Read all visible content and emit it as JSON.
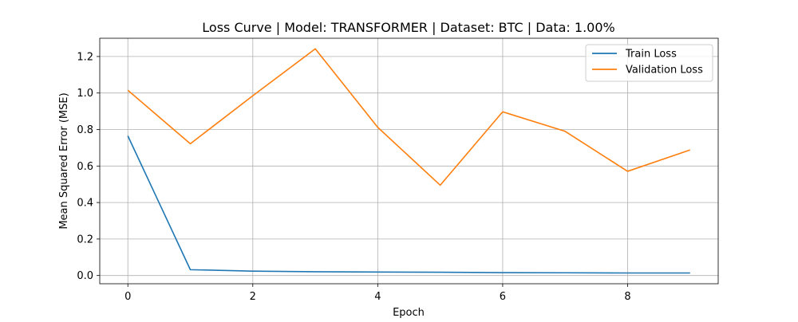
{
  "chart_data": {
    "type": "line",
    "title": "Loss Curve | Model: TRANSFORMER | Dataset: BTC | Data: 1.00%",
    "xlabel": "Epoch",
    "ylabel": "Mean Squared Error (MSE)",
    "x": [
      0,
      1,
      2,
      3,
      4,
      5,
      6,
      7,
      8,
      9
    ],
    "xlim": [
      -0.45,
      9.45
    ],
    "ylim": [
      -0.045,
      1.3
    ],
    "xticks": [
      0,
      2,
      4,
      6,
      8
    ],
    "xtick_labels": [
      "0",
      "2",
      "4",
      "6",
      "8"
    ],
    "yticks": [
      0.0,
      0.2,
      0.4,
      0.6,
      0.8,
      1.0,
      1.2
    ],
    "ytick_labels": [
      "0.0",
      "0.2",
      "0.4",
      "0.6",
      "0.8",
      "1.0",
      "1.2"
    ],
    "grid": true,
    "legend_position": "top-right",
    "series": [
      {
        "name": "Train Loss",
        "color": "#1f77b4",
        "values": [
          0.765,
          0.032,
          0.024,
          0.021,
          0.019,
          0.018,
          0.016,
          0.015,
          0.014,
          0.014
        ]
      },
      {
        "name": "Validation Loss",
        "color": "#ff7f0e",
        "values": [
          1.015,
          0.722,
          0.985,
          1.242,
          0.812,
          0.495,
          0.897,
          0.79,
          0.571,
          0.688
        ]
      }
    ]
  }
}
